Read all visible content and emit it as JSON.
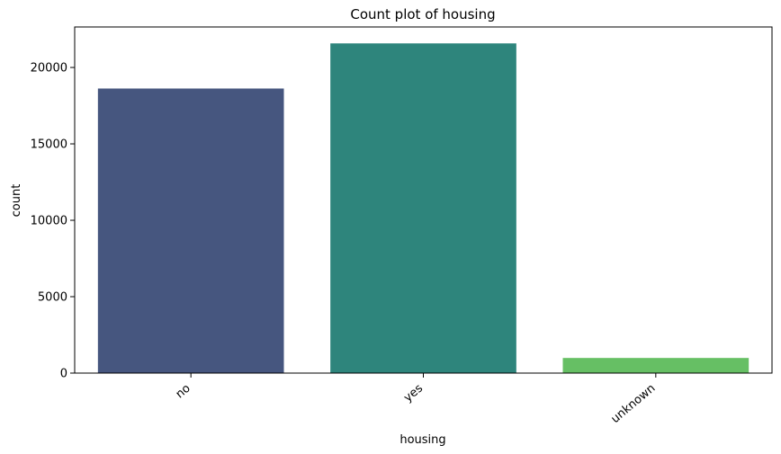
{
  "chart_data": {
    "type": "bar",
    "title": "Count plot of housing",
    "xlabel": "housing",
    "ylabel": "count",
    "categories": [
      "no",
      "yes",
      "unknown"
    ],
    "values": [
      18622,
      21576,
      990
    ],
    "colors": [
      "#46567f",
      "#2e857c",
      "#66bf64"
    ],
    "ylim": [
      0,
      22650
    ],
    "yticks": [
      0,
      5000,
      10000,
      15000,
      20000
    ],
    "ytick_labels": [
      "0",
      "5000",
      "10000",
      "15000",
      "20000"
    ],
    "grid": false,
    "legend": "none",
    "xtick_rotation": -40
  }
}
